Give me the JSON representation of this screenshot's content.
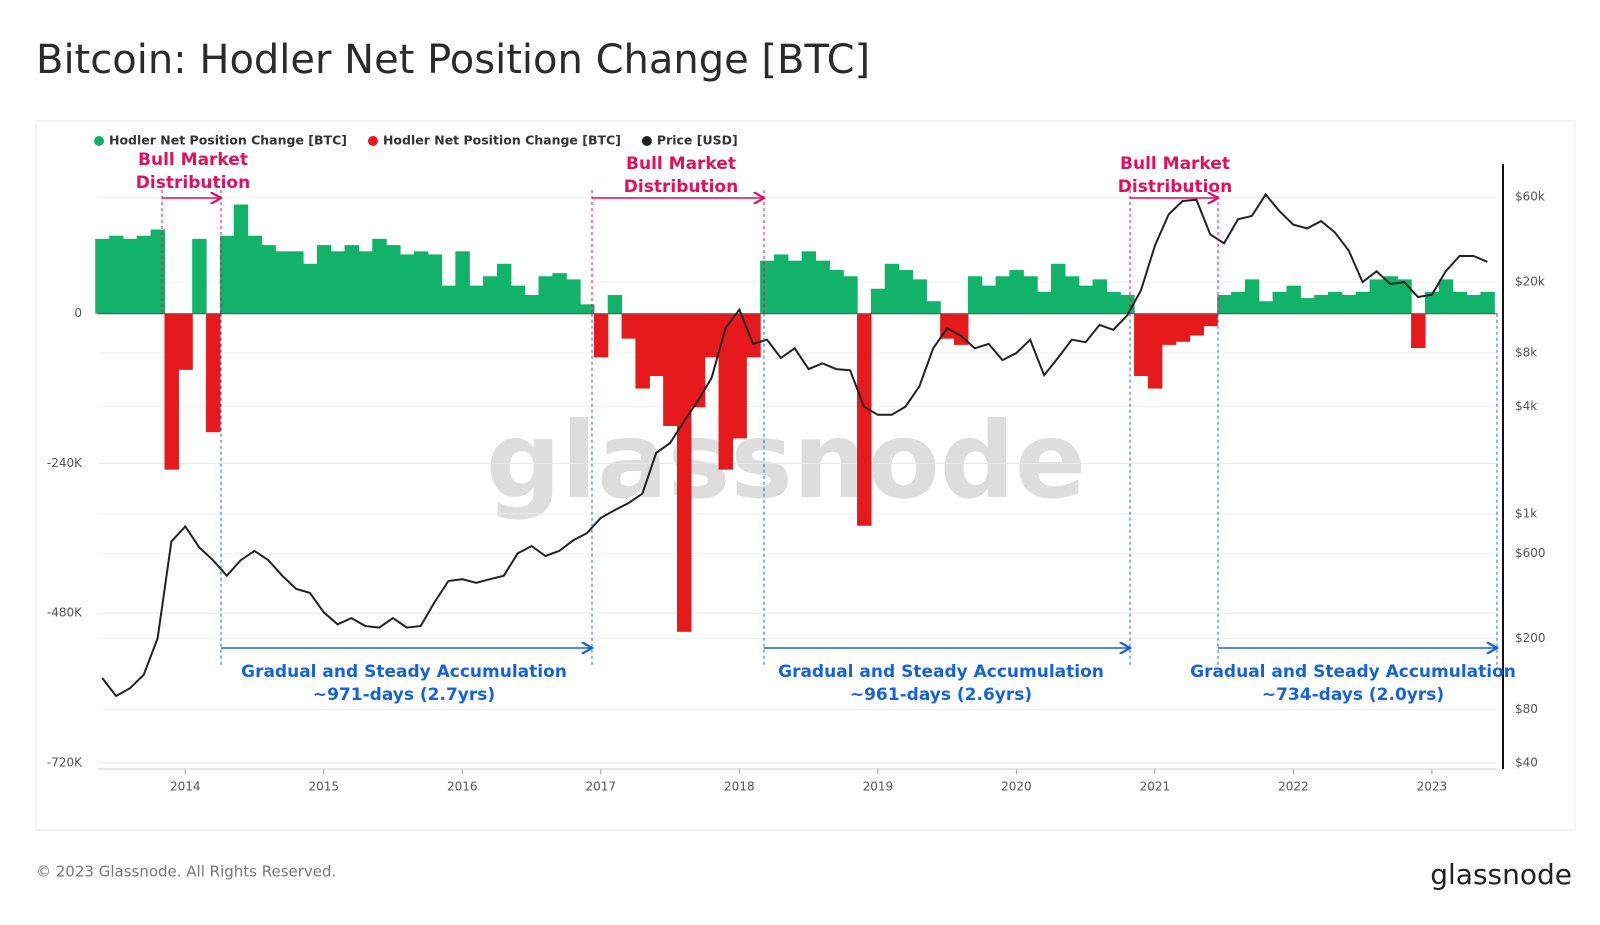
{
  "chart_data": {
    "type": "area-line",
    "title": "Bitcoin: Hodler Net Position Change [BTC]",
    "watermark": "glassnode",
    "x": [
      2013.4,
      2013.5,
      2013.6,
      2013.7,
      2013.8,
      2013.9,
      2014.0,
      2014.1,
      2014.2,
      2014.3,
      2014.4,
      2014.5,
      2014.6,
      2014.7,
      2014.8,
      2014.9,
      2015.0,
      2015.1,
      2015.2,
      2015.3,
      2015.4,
      2015.5,
      2015.6,
      2015.7,
      2015.8,
      2015.9,
      2016.0,
      2016.1,
      2016.2,
      2016.3,
      2016.4,
      2016.5,
      2016.6,
      2016.7,
      2016.8,
      2016.9,
      2017.0,
      2017.1,
      2017.2,
      2017.3,
      2017.4,
      2017.5,
      2017.6,
      2017.7,
      2017.8,
      2017.9,
      2018.0,
      2018.1,
      2018.2,
      2018.3,
      2018.4,
      2018.5,
      2018.6,
      2018.7,
      2018.8,
      2018.9,
      2019.0,
      2019.1,
      2019.2,
      2019.3,
      2019.4,
      2019.5,
      2019.6,
      2019.7,
      2019.8,
      2019.9,
      2020.0,
      2020.1,
      2020.2,
      2020.3,
      2020.4,
      2020.5,
      2020.6,
      2020.7,
      2020.8,
      2020.9,
      2021.0,
      2021.1,
      2021.2,
      2021.3,
      2021.4,
      2021.5,
      2021.6,
      2021.7,
      2021.8,
      2021.9,
      2022.0,
      2022.1,
      2022.2,
      2022.3,
      2022.4,
      2022.5,
      2022.6,
      2022.7,
      2022.8,
      2022.9,
      2023.0,
      2023.1,
      2023.2,
      2023.3,
      2023.4
    ],
    "series": [
      {
        "name": "Hodler Net Position Change [BTC]",
        "color": "#13b26b",
        "values": [
          120000,
          125000,
          120000,
          125000,
          135000,
          null,
          null,
          120000,
          null,
          125000,
          175000,
          125000,
          110000,
          100000,
          100000,
          80000,
          110000,
          100000,
          110000,
          100000,
          120000,
          110000,
          95000,
          100000,
          95000,
          45000,
          100000,
          45000,
          60000,
          80000,
          45000,
          30000,
          60000,
          65000,
          55000,
          15000,
          null,
          30000,
          null,
          null,
          null,
          null,
          null,
          null,
          null,
          null,
          null,
          null,
          85000,
          95000,
          85000,
          100000,
          85000,
          70000,
          60000,
          null,
          40000,
          80000,
          70000,
          55000,
          20000,
          null,
          null,
          60000,
          45000,
          60000,
          70000,
          60000,
          35000,
          80000,
          60000,
          45000,
          55000,
          35000,
          30000,
          null,
          null,
          null,
          null,
          null,
          null,
          30000,
          35000,
          55000,
          20000,
          35000,
          45000,
          25000,
          30000,
          35000,
          30000,
          35000,
          55000,
          60000,
          55000,
          null,
          35000,
          55000,
          35000,
          30000,
          35000
        ]
      },
      {
        "name": "Hodler Net Position Change [BTC]",
        "color": "#e6191c",
        "values": [
          null,
          null,
          null,
          null,
          null,
          -250000,
          -90000,
          null,
          -190000,
          null,
          null,
          null,
          null,
          null,
          null,
          null,
          null,
          null,
          null,
          null,
          null,
          null,
          null,
          null,
          null,
          null,
          null,
          null,
          null,
          null,
          null,
          null,
          null,
          null,
          null,
          null,
          -70000,
          null,
          -40000,
          -120000,
          -100000,
          -180000,
          -510000,
          -150000,
          -70000,
          -250000,
          -200000,
          -70000,
          null,
          null,
          null,
          null,
          null,
          null,
          null,
          -340000,
          null,
          null,
          null,
          null,
          null,
          -40000,
          -50000,
          null,
          null,
          null,
          null,
          null,
          null,
          null,
          null,
          null,
          null,
          null,
          null,
          -100000,
          -120000,
          -50000,
          -45000,
          -35000,
          -20000,
          null,
          null,
          null,
          null,
          null,
          null,
          null,
          null,
          null,
          null,
          null,
          null,
          null,
          null,
          -55000,
          null,
          null,
          null,
          null,
          null
        ]
      },
      {
        "name": "Price [USD]",
        "color": "#222222",
        "axis": "y2",
        "values": [
          120,
          95,
          105,
          125,
          200,
          700,
          850,
          650,
          550,
          450,
          550,
          620,
          550,
          450,
          380,
          360,
          280,
          240,
          260,
          235,
          230,
          260,
          230,
          235,
          320,
          420,
          430,
          410,
          430,
          450,
          600,
          660,
          580,
          620,
          710,
          780,
          950,
          1050,
          1150,
          1300,
          2200,
          2500,
          3300,
          4300,
          5800,
          11000,
          14000,
          9000,
          9500,
          7500,
          8500,
          6500,
          7000,
          6500,
          6400,
          4000,
          3600,
          3600,
          4000,
          5200,
          8500,
          11000,
          10000,
          8500,
          9000,
          7300,
          8000,
          9500,
          6000,
          7500,
          9500,
          9200,
          11500,
          10800,
          13000,
          18000,
          32000,
          48000,
          57000,
          58000,
          37000,
          33000,
          45000,
          47000,
          62000,
          50000,
          42000,
          40000,
          44000,
          38000,
          30000,
          20000,
          23000,
          19500,
          20000,
          16500,
          17000,
          23000,
          28000,
          28000,
          26000
        ]
      }
    ],
    "xlim": [
      2013.37,
      2023.47
    ],
    "xticks": [
      2014,
      2015,
      2016,
      2017,
      2018,
      2019,
      2020,
      2021,
      2022,
      2023
    ],
    "ylim": [
      -730000,
      240000
    ],
    "yticks": [
      {
        "value": -720000,
        "label": "-720K"
      },
      {
        "value": -480000,
        "label": "-480K"
      },
      {
        "value": -240000,
        "label": "-240K"
      },
      0
    ],
    "y2lim": [
      37,
      92000
    ],
    "y2scale": "log",
    "y2ticks": [
      {
        "value": 40,
        "label": "$40"
      },
      {
        "value": 80,
        "label": "$80"
      },
      {
        "value": 200,
        "label": "$200"
      },
      {
        "value": 600,
        "label": "$600"
      },
      {
        "value": 1000,
        "label": "$1k"
      },
      {
        "value": 4000,
        "label": "$4k"
      },
      {
        "value": 8000,
        "label": "$8k"
      },
      {
        "value": 20000,
        "label": "$20k"
      },
      {
        "value": 60000,
        "label": "$60k"
      }
    ],
    "grid": true,
    "legend": "top-left",
    "annotations": [
      {
        "lines": [
          "Bull Market",
          "Distribution"
        ]
      },
      {
        "lines": [
          "Bull Market",
          "Distribution"
        ]
      },
      {
        "lines": [
          "Bull Market",
          "Distribution"
        ]
      },
      {
        "lines": [
          "Gradual and Steady Accumulation",
          "~971-days (2.7yrs)"
        ]
      },
      {
        "lines": [
          "Gradual and Steady Accumulation",
          "~961-days (2.6yrs)"
        ]
      },
      {
        "lines": [
          "Gradual and Steady Accumulation",
          "~734-days (2.0yrs)"
        ]
      }
    ]
  },
  "footer": {
    "copyright": "© 2023 Glassnode. All Rights Reserved.",
    "logo": "glassnode"
  }
}
